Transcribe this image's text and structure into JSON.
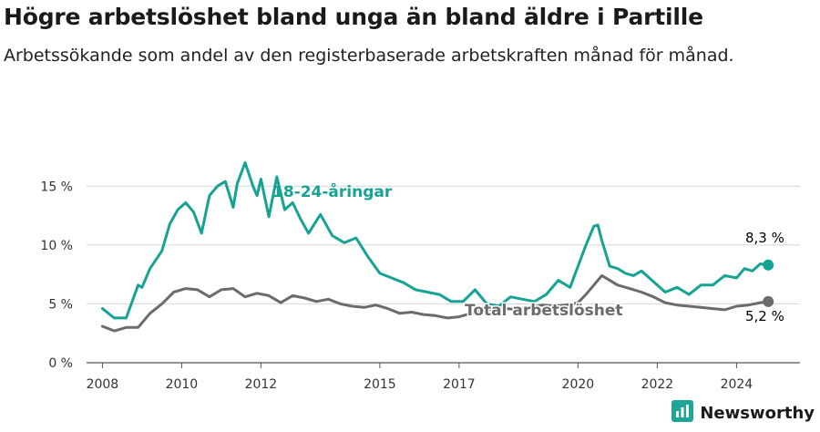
{
  "title": "Högre arbetslöshet bland unga än bland äldre i Partille",
  "subtitle": "Arbetssökande som andel av den registerbaserade arbetskraften månad för månad.",
  "brand": {
    "name": "Newsworthy",
    "color": "#20a696",
    "icon": "newsworthy-logo-icon"
  },
  "colors": {
    "youth": "#16a394",
    "total": "#6b6b6b",
    "grid": "#d6d6d6",
    "axis": "#555555"
  },
  "chart_data": {
    "type": "line",
    "x_ticks": [
      2008,
      2010,
      2012,
      2015,
      2017,
      2020,
      2022,
      2024
    ],
    "y_ticks": [
      0,
      5,
      10,
      15
    ],
    "y_tick_labels": [
      "0 %",
      "5 %",
      "10 %",
      "15 %"
    ],
    "xlim": [
      2007.6,
      2025.6
    ],
    "ylim": [
      0,
      17.5
    ],
    "grid": true,
    "series": [
      {
        "name": "18-24-åringar",
        "label": "18-24-åringar",
        "end_label": "8,3 %",
        "color_key": "youth",
        "x": [
          2008.0,
          2008.3,
          2008.6,
          2008.9,
          2009.0,
          2009.2,
          2009.5,
          2009.7,
          2009.9,
          2010.1,
          2010.3,
          2010.5,
          2010.7,
          2010.9,
          2011.1,
          2011.3,
          2011.4,
          2011.6,
          2011.8,
          2011.9,
          2012.0,
          2012.2,
          2012.4,
          2012.6,
          2012.8,
          2013.0,
          2013.2,
          2013.5,
          2013.8,
          2014.1,
          2014.4,
          2014.7,
          2015.0,
          2015.3,
          2015.6,
          2015.9,
          2016.2,
          2016.5,
          2016.8,
          2017.1,
          2017.4,
          2017.7,
          2018.0,
          2018.3,
          2018.6,
          2018.9,
          2019.2,
          2019.5,
          2019.8,
          2020.0,
          2020.2,
          2020.4,
          2020.5,
          2020.6,
          2020.8,
          2021.0,
          2021.2,
          2021.4,
          2021.6,
          2021.8,
          2022.0,
          2022.2,
          2022.5,
          2022.8,
          2023.1,
          2023.4,
          2023.7,
          2024.0,
          2024.2,
          2024.4,
          2024.6,
          2024.8
        ],
        "values": [
          4.6,
          3.8,
          3.8,
          6.6,
          6.4,
          8.0,
          9.5,
          11.8,
          13.0,
          13.6,
          12.8,
          11.0,
          14.2,
          15.0,
          15.4,
          13.2,
          15.2,
          17.0,
          15.0,
          14.2,
          15.6,
          12.4,
          15.8,
          13.0,
          13.6,
          12.2,
          11.0,
          12.6,
          10.8,
          10.2,
          10.6,
          9.0,
          7.6,
          7.2,
          6.8,
          6.2,
          6.0,
          5.8,
          5.2,
          5.2,
          6.2,
          5.0,
          4.8,
          5.6,
          5.4,
          5.2,
          5.8,
          7.0,
          6.4,
          8.2,
          10.0,
          11.6,
          11.7,
          10.4,
          8.2,
          8.0,
          7.6,
          7.4,
          7.8,
          7.2,
          6.6,
          6.0,
          6.4,
          5.8,
          6.6,
          6.6,
          7.4,
          7.2,
          8.0,
          7.8,
          8.4,
          8.3
        ]
      },
      {
        "name": "Total arbetslöshet",
        "label": "Total arbetslöshet",
        "end_label": "5,2 %",
        "color_key": "total",
        "x": [
          2008.0,
          2008.3,
          2008.6,
          2008.9,
          2009.2,
          2009.5,
          2009.8,
          2010.1,
          2010.4,
          2010.7,
          2011.0,
          2011.3,
          2011.6,
          2011.9,
          2012.2,
          2012.5,
          2012.8,
          2013.1,
          2013.4,
          2013.7,
          2014.0,
          2014.3,
          2014.6,
          2014.9,
          2015.2,
          2015.5,
          2015.8,
          2016.1,
          2016.4,
          2016.7,
          2017.0,
          2017.3,
          2017.6,
          2017.9,
          2018.2,
          2018.5,
          2018.8,
          2019.1,
          2019.4,
          2019.7,
          2020.0,
          2020.2,
          2020.4,
          2020.6,
          2020.8,
          2021.0,
          2021.3,
          2021.6,
          2021.9,
          2022.2,
          2022.5,
          2022.8,
          2023.1,
          2023.4,
          2023.7,
          2024.0,
          2024.3,
          2024.6,
          2024.8
        ],
        "values": [
          3.1,
          2.7,
          3.0,
          3.0,
          4.2,
          5.0,
          6.0,
          6.3,
          6.2,
          5.6,
          6.2,
          6.3,
          5.6,
          5.9,
          5.7,
          5.1,
          5.7,
          5.5,
          5.2,
          5.4,
          5.0,
          4.8,
          4.7,
          4.9,
          4.6,
          4.2,
          4.3,
          4.1,
          4.0,
          3.8,
          3.9,
          4.2,
          4.4,
          4.6,
          4.6,
          4.5,
          4.7,
          4.9,
          4.8,
          4.9,
          5.1,
          5.8,
          6.6,
          7.4,
          7.0,
          6.6,
          6.3,
          6.0,
          5.6,
          5.1,
          4.9,
          4.8,
          4.7,
          4.6,
          4.5,
          4.8,
          4.9,
          5.1,
          5.2
        ]
      }
    ]
  }
}
